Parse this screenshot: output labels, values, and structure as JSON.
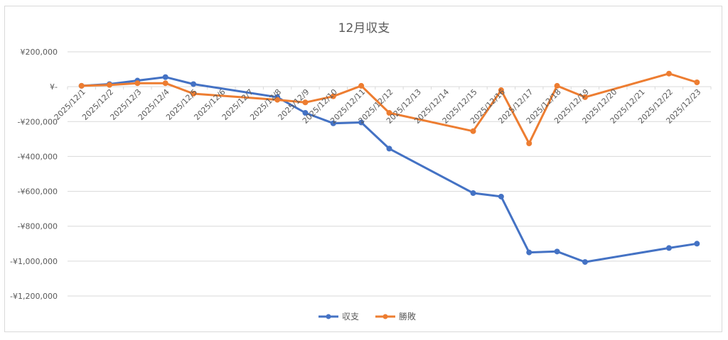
{
  "chart_data": {
    "type": "line",
    "title": "12月収支",
    "xlabel": "",
    "ylabel": "",
    "ylim": [
      -1200000,
      200000
    ],
    "yticks": [
      200000,
      0,
      -200000,
      -400000,
      -600000,
      -800000,
      -1000000,
      -1200000
    ],
    "ytick_labels": [
      "¥200,000",
      "¥-",
      "-¥200,000",
      "-¥400,000",
      "-¥600,000",
      "-¥800,000",
      "-¥1,000,000",
      "-¥1,200,000"
    ],
    "categories": [
      "2025/12/1",
      "2025/12/2",
      "2025/12/3",
      "2025/12/4",
      "2025/12/5",
      "2025/12/6",
      "2025/12/7",
      "2025/12/8",
      "2025/12/9",
      "2025/12/10",
      "2025/12/11",
      "2025/12/12",
      "2025/12/13",
      "2025/12/14",
      "2025/12/15",
      "2025/12/16",
      "2025/12/17",
      "2025/12/18",
      "2025/12/19",
      "2025/12/20",
      "2025/12/21",
      "2025/12/22",
      "2025/12/23"
    ],
    "grid": true,
    "legend_position": "bottom",
    "series": [
      {
        "name": "収支",
        "color": "#4472c4",
        "values": [
          5000,
          15000,
          35000,
          55000,
          15000,
          null,
          null,
          -60000,
          -150000,
          -210000,
          -205000,
          -355000,
          null,
          null,
          -610000,
          -630000,
          -950000,
          -945000,
          -1005000,
          null,
          null,
          -925000,
          -900000
        ]
      },
      {
        "name": "勝敗",
        "color": "#ed7d31",
        "values": [
          5000,
          10000,
          20000,
          20000,
          -40000,
          null,
          null,
          -75000,
          -90000,
          -55000,
          5000,
          -150000,
          null,
          null,
          -255000,
          -20000,
          -325000,
          5000,
          -60000,
          null,
          null,
          75000,
          25000
        ]
      }
    ]
  }
}
